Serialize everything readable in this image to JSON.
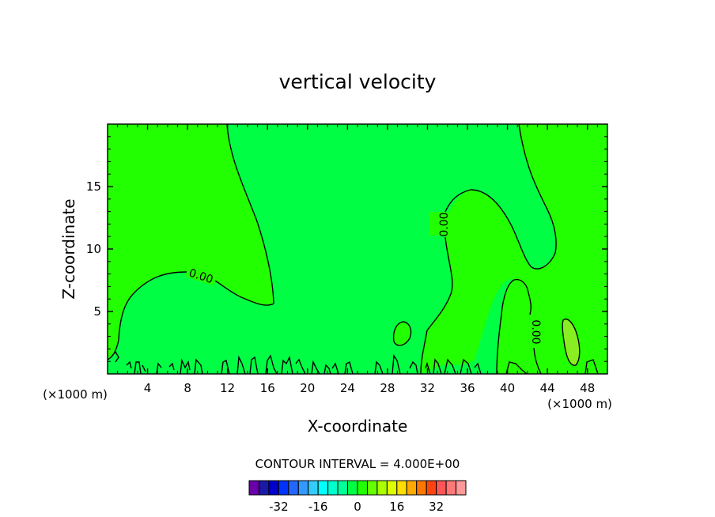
{
  "chart_data": {
    "type": "contour",
    "title": "vertical velocity",
    "xlabel": "X-coordinate",
    "ylabel": "Z-coordinate",
    "x_units": "(×1000 m)",
    "y_units": "(×1000 m)",
    "xlim": [
      0,
      50
    ],
    "ylim": [
      0,
      20
    ],
    "x_ticks": [
      4,
      8,
      12,
      16,
      20,
      24,
      28,
      32,
      36,
      40,
      44,
      48
    ],
    "y_ticks": [
      5,
      10,
      15
    ],
    "contour_interval_text": "CONTOUR INTERVAL = 4.000E+00",
    "contour_labels": [
      "0.00",
      "0.00",
      "0.00"
    ],
    "background_color": "#00ff44",
    "positive_region_color": "#22ff00",
    "strong_positive_color": "#88ee22",
    "colorbar": {
      "colors": [
        "#6a00aa",
        "#1a1aa6",
        "#0000cc",
        "#0033ff",
        "#2266ff",
        "#3399ff",
        "#33ccff",
        "#00ffff",
        "#00ffcc",
        "#00ff99",
        "#00ff44",
        "#22ff00",
        "#66ff00",
        "#aaff00",
        "#ddff00",
        "#ffdd00",
        "#ffaa00",
        "#ff7700",
        "#ff4411",
        "#ff5555",
        "#ff7777",
        "#ff9999"
      ],
      "tick_labels": [
        "-32",
        "-16",
        "0",
        "16",
        "32"
      ]
    }
  }
}
